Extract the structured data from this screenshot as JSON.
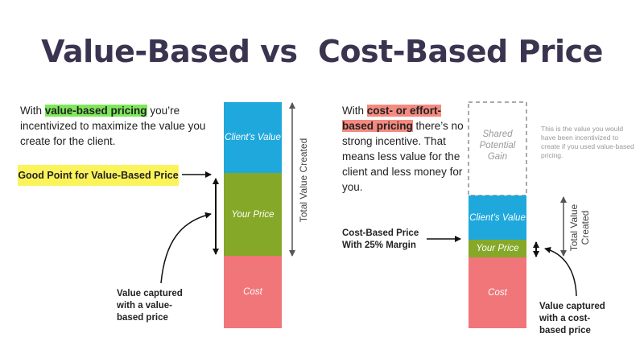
{
  "title": "Value-Based vs  Cost-Based Price",
  "left": {
    "intro_before": "With ",
    "intro_highlight": "value-based pricing",
    "intro_after": " you’re incentivized to maximize the value you create for the client.",
    "callout": "Good Point for Value-Based Price",
    "stack": {
      "clients_value": "Client’s Value",
      "your_price": "Your Price",
      "cost": "Cost"
    },
    "total_label": "Total Value Created",
    "captured_note": "Value captured with a value-based price"
  },
  "right": {
    "intro_before": "With ",
    "intro_highlight": "cost- or effort-based pricing",
    "intro_after": " there’s no strong incentive. That means less value for the client and less money for you.",
    "callout": "Cost-Based Price With 25% Margin",
    "shared_gain": "Shared Potential Gain",
    "shared_note": "This is the value you would have been incentivized to create if you used value-based pricing.",
    "stack": {
      "clients_value": "Client’s Value",
      "your_price": "Your Price",
      "cost": "Cost"
    },
    "total_label": "Total Value Created",
    "captured_note": "Value captured with a cost-based price"
  }
}
